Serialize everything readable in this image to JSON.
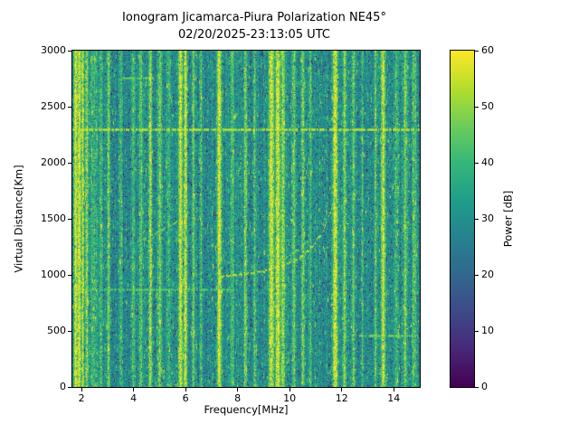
{
  "chart_data": {
    "type": "heatmap",
    "title_lines": [
      "Ionogram Jicamarca-Piura Polarization NE45°",
      "02/20/2025-23:13:05 UTC"
    ],
    "xlabel": "Frequency[MHz]",
    "ylabel": "Virtual Distance[Km]",
    "xlim": [
      1.65,
      15.0
    ],
    "ylim": [
      0,
      3000
    ],
    "xticks": [
      2,
      4,
      6,
      8,
      10,
      12,
      14
    ],
    "yticks": [
      0,
      500,
      1000,
      1500,
      2000,
      2500,
      3000
    ],
    "colorbar": {
      "label": "Power [dB]",
      "min": 0,
      "max": 60,
      "ticks": [
        0,
        10,
        20,
        30,
        40,
        50,
        60
      ],
      "colormap": "viridis"
    },
    "background": {
      "mean_db": 29,
      "noise_db": 8
    },
    "vertical_interference": [
      {
        "freq": 1.78,
        "sigma": 0.05,
        "power": 60
      },
      {
        "freq": 1.92,
        "sigma": 0.05,
        "power": 59
      },
      {
        "freq": 2.05,
        "sigma": 0.04,
        "power": 56
      },
      {
        "freq": 2.2,
        "sigma": 0.05,
        "power": 50
      },
      {
        "freq": 2.45,
        "sigma": 0.12,
        "power": 40
      },
      {
        "freq": 2.75,
        "sigma": 0.05,
        "power": 44
      },
      {
        "freq": 3.05,
        "sigma": 0.04,
        "power": 46
      },
      {
        "freq": 3.5,
        "sigma": 0.05,
        "power": 42
      },
      {
        "freq": 4.0,
        "sigma": 0.05,
        "power": 44
      },
      {
        "freq": 4.3,
        "sigma": 0.04,
        "power": 46
      },
      {
        "freq": 4.65,
        "sigma": 0.05,
        "power": 54
      },
      {
        "freq": 5.0,
        "sigma": 0.05,
        "power": 47
      },
      {
        "freq": 5.35,
        "sigma": 0.04,
        "power": 44
      },
      {
        "freq": 5.8,
        "sigma": 0.05,
        "power": 56
      },
      {
        "freq": 6.0,
        "sigma": 0.05,
        "power": 57
      },
      {
        "freq": 6.3,
        "sigma": 0.04,
        "power": 45
      },
      {
        "freq": 6.6,
        "sigma": 0.04,
        "power": 42
      },
      {
        "freq": 7.3,
        "sigma": 0.06,
        "power": 58
      },
      {
        "freq": 7.8,
        "sigma": 0.05,
        "power": 43
      },
      {
        "freq": 8.3,
        "sigma": 0.05,
        "power": 48
      },
      {
        "freq": 8.65,
        "sigma": 0.04,
        "power": 42
      },
      {
        "freq": 9.3,
        "sigma": 0.08,
        "power": 58
      },
      {
        "freq": 9.55,
        "sigma": 0.07,
        "power": 59
      },
      {
        "freq": 9.75,
        "sigma": 0.05,
        "power": 52
      },
      {
        "freq": 10.15,
        "sigma": 0.05,
        "power": 46
      },
      {
        "freq": 10.5,
        "sigma": 0.05,
        "power": 45
      },
      {
        "freq": 10.8,
        "sigma": 0.04,
        "power": 42
      },
      {
        "freq": 11.75,
        "sigma": 0.07,
        "power": 58
      },
      {
        "freq": 12.1,
        "sigma": 0.05,
        "power": 47
      },
      {
        "freq": 12.45,
        "sigma": 0.05,
        "power": 44
      },
      {
        "freq": 12.8,
        "sigma": 0.04,
        "power": 41
      },
      {
        "freq": 13.3,
        "sigma": 0.04,
        "power": 44
      },
      {
        "freq": 13.6,
        "sigma": 0.06,
        "power": 57
      },
      {
        "freq": 14.1,
        "sigma": 0.05,
        "power": 43
      },
      {
        "freq": 14.45,
        "sigma": 0.06,
        "power": 47
      },
      {
        "freq": 14.8,
        "sigma": 0.05,
        "power": 44
      }
    ],
    "horizontal_bands": [
      {
        "km": 2300,
        "fmin": 1.65,
        "fmax": 15.0,
        "power": 54
      },
      {
        "km": 870,
        "fmin": 1.9,
        "fmax": 8.0,
        "power": 44
      },
      {
        "km": 460,
        "fmin": 12.7,
        "fmax": 15.0,
        "power": 49
      },
      {
        "km": 2760,
        "fmin": 3.6,
        "fmax": 4.8,
        "power": 47
      }
    ],
    "echo_traces": [
      {
        "name": "f-region-main",
        "power": 52,
        "points": [
          [
            7.35,
            995
          ],
          [
            7.9,
            1005
          ],
          [
            8.5,
            1020
          ],
          [
            9.0,
            1040
          ],
          [
            9.5,
            1070
          ],
          [
            9.9,
            1105
          ],
          [
            10.3,
            1150
          ],
          [
            10.65,
            1210
          ],
          [
            10.95,
            1285
          ],
          [
            11.2,
            1375
          ],
          [
            11.4,
            1470
          ],
          [
            11.55,
            1575
          ],
          [
            11.65,
            1670
          ]
        ]
      },
      {
        "name": "f-region-upper-left",
        "power": 46,
        "points": [
          [
            4.15,
            1310
          ],
          [
            4.55,
            1345
          ],
          [
            4.95,
            1390
          ],
          [
            5.35,
            1440
          ],
          [
            5.75,
            1500
          ],
          [
            6.1,
            1565
          ]
        ]
      },
      {
        "name": "f-region-second-branch",
        "power": 45,
        "points": [
          [
            9.55,
            1130
          ],
          [
            9.95,
            1175
          ],
          [
            10.35,
            1235
          ],
          [
            10.7,
            1305
          ]
        ]
      }
    ]
  }
}
